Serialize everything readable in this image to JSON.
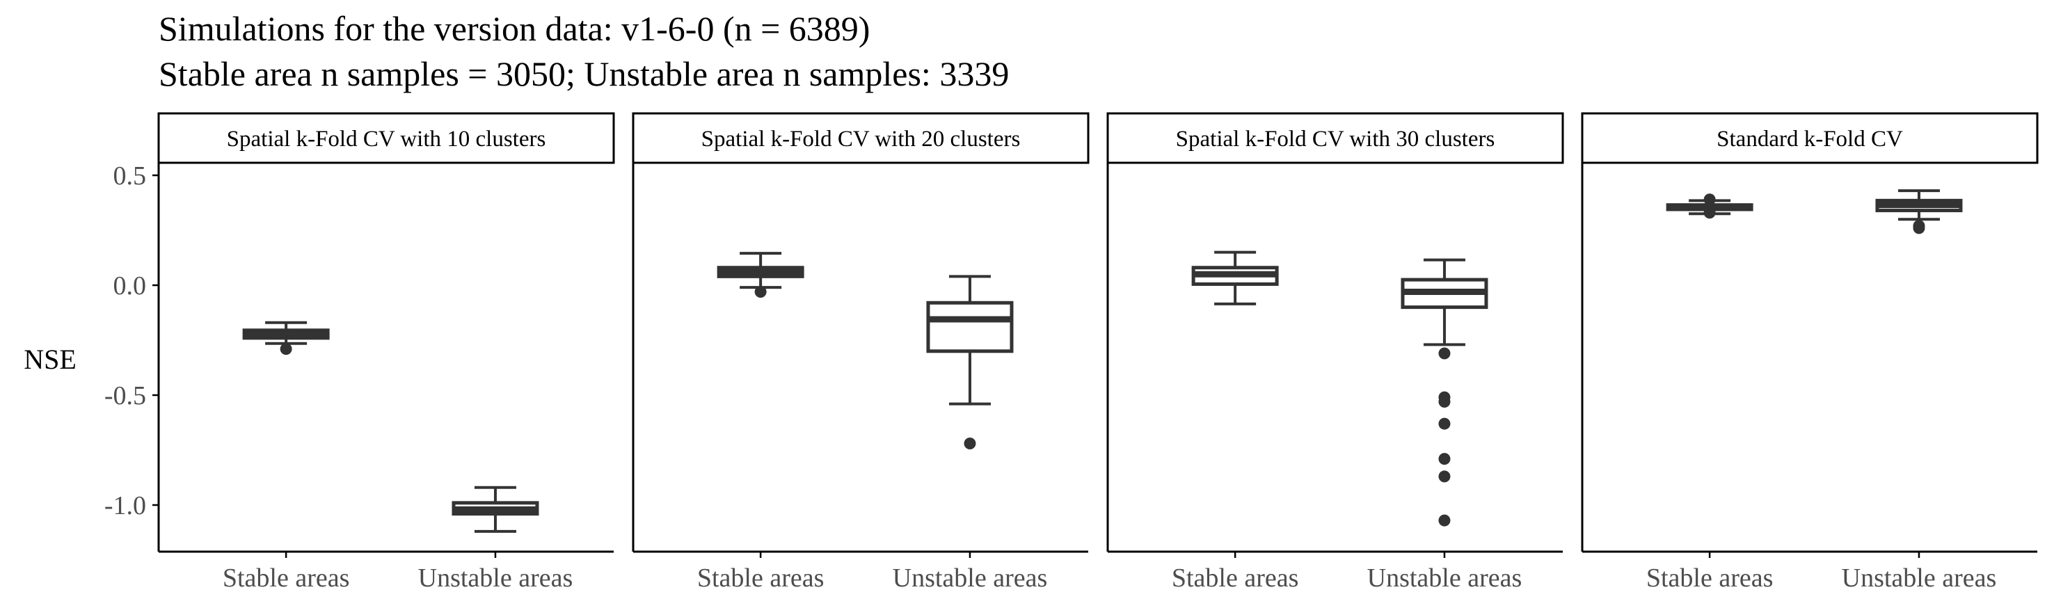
{
  "chart_data": {
    "type": "boxplot",
    "title": "Simulations for the version data: v1-6-0 (n = 6389)",
    "subtitle": "Stable area n samples = 3050; Unstable area n samples: 3339",
    "ylabel": "NSE",
    "xlabel": "",
    "ylim": [
      -1.3,
      0.58
    ],
    "yticks": [
      0.5,
      0.0,
      -0.5,
      -1.0
    ],
    "ytick_labels": [
      "0.5",
      "0.0",
      "-0.5",
      "-1.0"
    ],
    "categories": [
      "Stable areas",
      "Unstable areas"
    ],
    "grid": false,
    "legend": "none",
    "colors": {
      "box_stroke": "#333333",
      "box_fill": "#ffffff",
      "outlier": "#333333",
      "axis": "#000000"
    },
    "panels": [
      {
        "label": "Spatial k-Fold CV with 10 clusters",
        "boxes": [
          {
            "category": "Stable areas",
            "whisker_low": -0.265,
            "q1": -0.24,
            "median": -0.225,
            "q3": -0.205,
            "whisker_high": -0.17,
            "outliers": [
              -0.29
            ]
          },
          {
            "category": "Unstable areas",
            "whisker_low": -1.12,
            "q1": -1.04,
            "median": -1.02,
            "q3": -0.99,
            "whisker_high": -0.92,
            "outliers": []
          }
        ]
      },
      {
        "label": "Spatial k-Fold CV with 20 clusters",
        "boxes": [
          {
            "category": "Stable areas",
            "whisker_low": -0.01,
            "q1": 0.04,
            "median": 0.06,
            "q3": 0.08,
            "whisker_high": 0.145,
            "outliers": [
              -0.03
            ]
          },
          {
            "category": "Unstable areas",
            "whisker_low": -0.54,
            "q1": -0.3,
            "median": -0.155,
            "q3": -0.08,
            "whisker_high": 0.04,
            "outliers": [
              -0.72
            ]
          }
        ]
      },
      {
        "label": "Spatial k-Fold CV with 30 clusters",
        "boxes": [
          {
            "category": "Stable areas",
            "whisker_low": -0.085,
            "q1": 0.005,
            "median": 0.05,
            "q3": 0.08,
            "whisker_high": 0.15,
            "outliers": []
          },
          {
            "category": "Unstable areas",
            "whisker_low": -0.27,
            "q1": -0.1,
            "median": -0.03,
            "q3": 0.025,
            "whisker_high": 0.115,
            "outliers": [
              -0.31,
              -0.51,
              -0.53,
              -0.63,
              -0.79,
              -0.87,
              -1.07
            ]
          }
        ]
      },
      {
        "label": "Standard k-Fold CV",
        "boxes": [
          {
            "category": "Stable areas",
            "whisker_low": 0.325,
            "q1": 0.345,
            "median": 0.355,
            "q3": 0.365,
            "whisker_high": 0.385,
            "outliers": [
              0.39,
              0.33
            ]
          },
          {
            "category": "Unstable areas",
            "whisker_low": 0.3,
            "q1": 0.34,
            "median": 0.365,
            "q3": 0.385,
            "whisker_high": 0.43,
            "outliers": [
              0.26,
              0.27
            ]
          }
        ]
      }
    ]
  }
}
